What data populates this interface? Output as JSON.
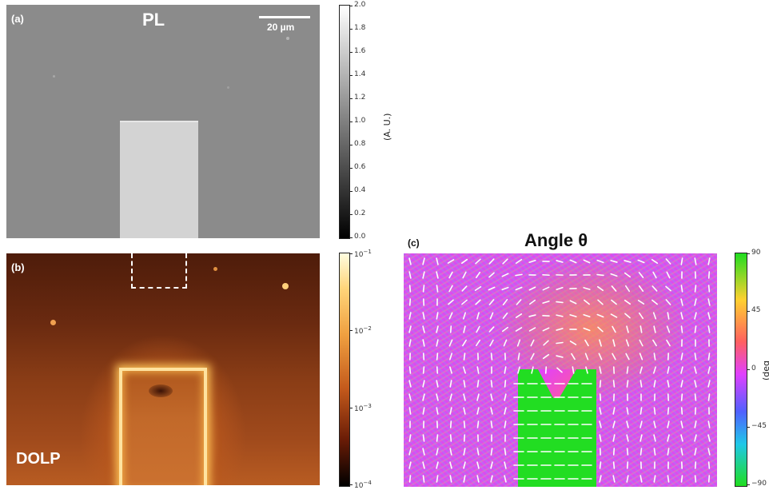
{
  "panel_a": {
    "label": "(a)",
    "title": "PL",
    "scalebar": "20 µm",
    "colorbar": {
      "label": "(A. U.)",
      "ticks": [
        "2.0",
        "1.8",
        "1.6",
        "1.4",
        "1.2",
        "1.0",
        "0.8",
        "0.6",
        "0.4",
        "0.2",
        "0.0"
      ]
    }
  },
  "panel_b": {
    "label": "(b)",
    "title": "DOLP",
    "colorbar": {
      "ticks": [
        "10",
        "10",
        "10",
        "10"
      ],
      "exponents": [
        "−1",
        "−2",
        "−3",
        "−4"
      ]
    }
  },
  "panel_c": {
    "label": "(c)",
    "title": "Angle θ",
    "colorbar": {
      "label": "(deg",
      "ticks": [
        "90",
        "45",
        "0",
        "−45",
        "−90"
      ]
    }
  },
  "colors": {
    "pl_background": "#8a8a8a",
    "pl_stripe": "#d2d2d2",
    "dolp_dark": "#4a1a08",
    "dolp_mid": "#b4531a",
    "dolp_bright": "#ffe9a6",
    "angle_magenta": "#e040ff",
    "angle_green": "#22dd22",
    "angle_orange": "#ff9a4a"
  }
}
